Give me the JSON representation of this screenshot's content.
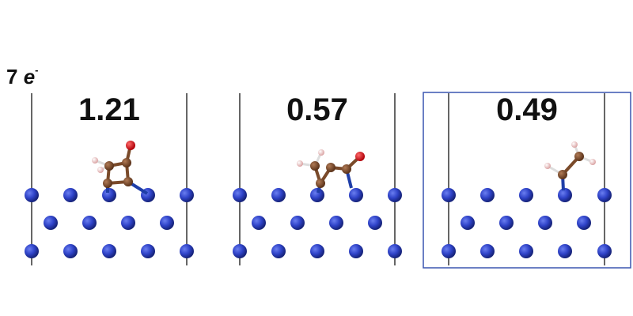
{
  "electron_count": {
    "number": "7",
    "symbol": "e",
    "superscript": "-"
  },
  "panels": [
    {
      "energy": "1.21",
      "adsorbate": "cyclic C-C(=O)-N ring with H on carbon",
      "highlighted": false
    },
    {
      "energy": "0.57",
      "adsorbate": "bent C-C(=O) chain with terminal O",
      "highlighted": false
    },
    {
      "energy": "0.49",
      "adsorbate": "C2H2 ethylene-like fragment",
      "highlighted": true
    }
  ],
  "colors": {
    "surface_atom": "#2f43c8",
    "carbon": "#7a4a2a",
    "oxygen": "#e0141a",
    "hydrogen": "#f2c4c4",
    "nitrogen_bond": "#1f3ea8",
    "cell_edge": "#333333",
    "highlight_box": "#3a55b0"
  }
}
